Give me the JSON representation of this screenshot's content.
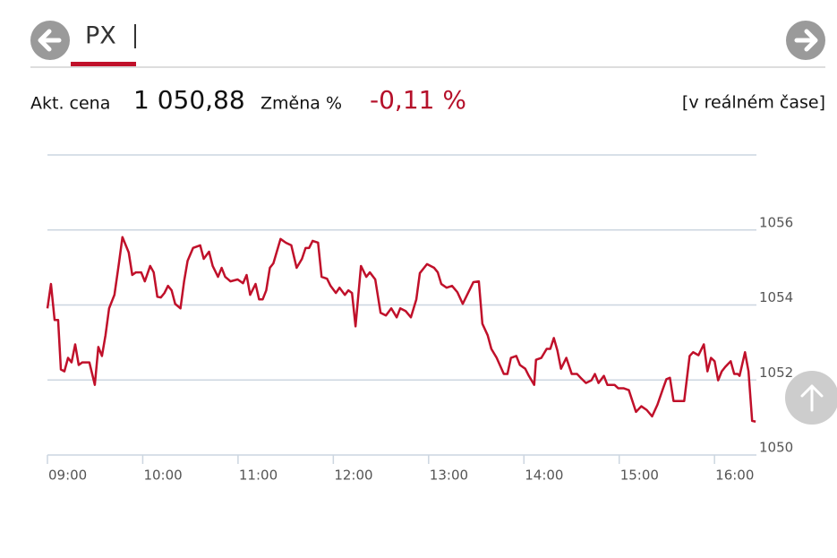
{
  "header": {
    "tab": "PX"
  },
  "quote": {
    "price_label": "Akt. cena",
    "price": "1 050,88",
    "change_label": "Změna %",
    "change": "-0,11 %",
    "realtime": "[v reálném čase]"
  },
  "chart_data": {
    "type": "line",
    "color": "#c0102a",
    "x": [
      9.0,
      9.037,
      9.075,
      9.112,
      9.141,
      9.178,
      9.216,
      9.253,
      9.291,
      9.328,
      9.366,
      9.44,
      9.497,
      9.534,
      9.572,
      9.609,
      9.647,
      9.703,
      9.75,
      9.787,
      9.853,
      9.89,
      9.928,
      9.984,
      10.022,
      10.078,
      10.115,
      10.153,
      10.19,
      10.228,
      10.265,
      10.303,
      10.34,
      10.396,
      10.434,
      10.471,
      10.528,
      10.603,
      10.64,
      10.696,
      10.734,
      10.79,
      10.828,
      10.865,
      10.921,
      10.996,
      11.052,
      11.09,
      11.127,
      11.184,
      11.221,
      11.259,
      11.296,
      11.334,
      11.371,
      11.446,
      11.502,
      11.559,
      11.615,
      11.671,
      11.709,
      11.746,
      11.783,
      11.84,
      11.877,
      11.934,
      11.971,
      12.027,
      12.065,
      12.121,
      12.158,
      12.196,
      12.233,
      12.29,
      12.346,
      12.383,
      12.44,
      12.496,
      12.552,
      12.608,
      12.665,
      12.702,
      12.758,
      12.814,
      12.871,
      12.908,
      12.983,
      13.058,
      13.096,
      13.133,
      13.189,
      13.246,
      13.302,
      13.358,
      13.414,
      13.47,
      13.527,
      13.564,
      13.62,
      13.658,
      13.714,
      13.789,
      13.827,
      13.864,
      13.92,
      13.958,
      14.014,
      14.052,
      14.108,
      14.127,
      14.183,
      14.239,
      14.277,
      14.314,
      14.352,
      14.389,
      14.445,
      14.502,
      14.558,
      14.595,
      14.651,
      14.708,
      14.745,
      14.783,
      14.839,
      14.876,
      14.951,
      14.989,
      15.045,
      15.101,
      15.176,
      15.232,
      15.289,
      15.345,
      15.401,
      15.457,
      15.495,
      15.532,
      15.57,
      15.626,
      15.682,
      15.739,
      15.776,
      15.832,
      15.888,
      15.926,
      15.963,
      16.001,
      16.038,
      16.076,
      16.113,
      16.17,
      16.207,
      16.245,
      16.263,
      16.32,
      16.357,
      16.395,
      16.432
    ],
    "values": [
      1053.91,
      1054.56,
      1053.6,
      1053.6,
      1052.28,
      1052.23,
      1052.59,
      1052.47,
      1052.95,
      1052.4,
      1052.47,
      1052.47,
      1051.87,
      1052.88,
      1052.64,
      1053.19,
      1053.91,
      1054.27,
      1055.11,
      1055.81,
      1055.4,
      1054.8,
      1054.87,
      1054.87,
      1054.63,
      1055.04,
      1054.87,
      1054.22,
      1054.2,
      1054.32,
      1054.51,
      1054.39,
      1054.03,
      1053.91,
      1054.63,
      1055.18,
      1055.52,
      1055.59,
      1055.23,
      1055.42,
      1055.04,
      1054.75,
      1054.99,
      1054.75,
      1054.63,
      1054.68,
      1054.58,
      1054.8,
      1054.27,
      1054.56,
      1054.15,
      1054.15,
      1054.39,
      1054.99,
      1055.11,
      1055.76,
      1055.66,
      1055.59,
      1054.99,
      1055.23,
      1055.52,
      1055.52,
      1055.71,
      1055.66,
      1054.75,
      1054.7,
      1054.51,
      1054.32,
      1054.46,
      1054.27,
      1054.39,
      1054.32,
      1053.43,
      1055.04,
      1054.75,
      1054.87,
      1054.68,
      1053.79,
      1053.72,
      1053.91,
      1053.67,
      1053.91,
      1053.84,
      1053.67,
      1054.15,
      1054.85,
      1055.09,
      1054.99,
      1054.87,
      1054.56,
      1054.46,
      1054.51,
      1054.34,
      1054.03,
      1054.32,
      1054.61,
      1054.63,
      1053.5,
      1053.19,
      1052.83,
      1052.59,
      1052.16,
      1052.16,
      1052.59,
      1052.64,
      1052.4,
      1052.3,
      1052.11,
      1051.87,
      1052.54,
      1052.59,
      1052.83,
      1052.83,
      1053.12,
      1052.78,
      1052.3,
      1052.59,
      1052.16,
      1052.16,
      1052.06,
      1051.92,
      1051.99,
      1052.16,
      1051.92,
      1052.11,
      1051.87,
      1051.87,
      1051.78,
      1051.78,
      1051.73,
      1051.15,
      1051.3,
      1051.2,
      1051.03,
      1051.34,
      1051.75,
      1052.02,
      1052.06,
      1051.44,
      1051.44,
      1051.44,
      1052.64,
      1052.74,
      1052.66,
      1052.95,
      1052.23,
      1052.59,
      1052.5,
      1051.99,
      1052.23,
      1052.35,
      1052.5,
      1052.16,
      1052.16,
      1052.11,
      1052.74,
      1052.23,
      1050.91,
      1050.89
    ],
    "xlim": [
      9,
      16.44
    ],
    "ylim": [
      1050,
      1058
    ],
    "yticks": [
      1050,
      1052,
      1054,
      1056
    ],
    "xticks": [
      {
        "value": 9,
        "label": "09:00"
      },
      {
        "value": 10,
        "label": "10:00"
      },
      {
        "value": 11,
        "label": "11:00"
      },
      {
        "value": 12,
        "label": "12:00"
      },
      {
        "value": 13,
        "label": "13:00"
      },
      {
        "value": 14,
        "label": "14:00"
      },
      {
        "value": 15,
        "label": "15:00"
      },
      {
        "value": 16,
        "label": "16:00"
      }
    ],
    "grid": true
  }
}
